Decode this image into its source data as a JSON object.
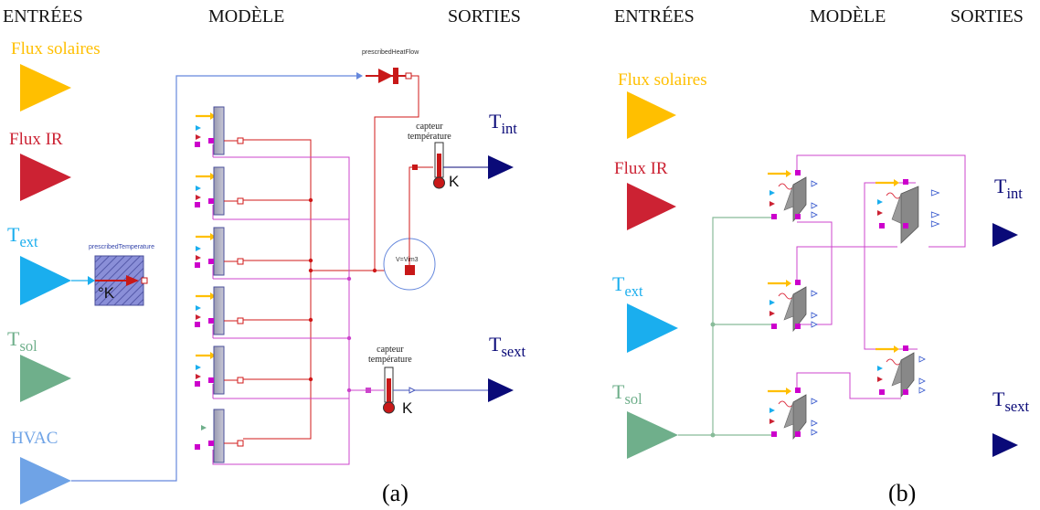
{
  "headers": {
    "a": {
      "inputs": "ENTRÉES",
      "model": "MODÈLE",
      "outputs": "SORTIES"
    },
    "b": {
      "inputs": "ENTRÉES",
      "model": "MODÈLE",
      "outputs": "SORTIES"
    }
  },
  "inputs": {
    "solar": "Flux solaires",
    "ir": "Flux IR",
    "text_main": "T",
    "text_sub": "ext",
    "tsol_main": "T",
    "tsol_sub": "sol",
    "hvac": "HVAC"
  },
  "outputs": {
    "tint_main": "T",
    "tint_sub": "int",
    "tsext_main": "T",
    "tsext_sub1": "s",
    "tsext_sub2": "ext"
  },
  "model_a": {
    "prescribed_temperature": "prescribedTemperature",
    "prescribed_heat_flow": "prescribedHeatFlow",
    "kelvin_source": "°K",
    "sensor_label_line1": "capteur",
    "sensor_label_line2": "température",
    "sensor_unit": "K",
    "volume_label": "V=Vim3"
  },
  "captions": {
    "a": "(a)",
    "b": "(b)"
  },
  "colors": {
    "solar": "#FFBF00",
    "ir": "#CC2233",
    "text": "#1AAEEE",
    "tsol": "#6FAF8B",
    "hvac": "#6FA3E6",
    "output": "#0A0A78",
    "wire_red": "#D01818",
    "wire_magenta": "#CC44CC",
    "wire_blue": "#6688DD",
    "wire_green": "#88BB99"
  }
}
